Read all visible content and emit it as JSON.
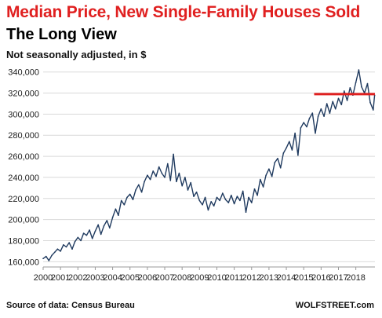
{
  "header": {
    "title": "Median Price, New Single-Family Houses Sold",
    "subtitle": "The Long View",
    "note": "Not seasonally adjusted, in $"
  },
  "footer": {
    "source": "Source of data: Census Bureau",
    "brand": "WOLFSTREET.com"
  },
  "colors": {
    "line": "#1f3a5f",
    "reference_line": "#e02020",
    "grid": "#d9d9d9",
    "title": "#e02020"
  },
  "chart_data": {
    "type": "line",
    "title": "Median Price, New Single-Family Houses Sold",
    "xlabel": "",
    "ylabel": "",
    "ylim": [
      155000,
      345000
    ],
    "yticks": [
      160000,
      180000,
      200000,
      220000,
      240000,
      260000,
      280000,
      300000,
      320000,
      340000
    ],
    "ytick_labels": [
      "160,000",
      "180,000",
      "200,000",
      "220,000",
      "240,000",
      "260,000",
      "280,000",
      "300,000",
      "320,000",
      "340,000"
    ],
    "xticks": [
      2000,
      2001,
      2002,
      2003,
      2004,
      2005,
      2006,
      2007,
      2008,
      2009,
      2010,
      2011,
      2012,
      2013,
      2014,
      2015,
      2016,
      2017,
      2018
    ],
    "xtick_labels": [
      "2000",
      "2001",
      "2002",
      "2003",
      "2004",
      "2005",
      "2006",
      "2007",
      "2008",
      "2009",
      "2010",
      "2011",
      "2012",
      "2013",
      "2014",
      "2015",
      "2016",
      "2017",
      "2018"
    ],
    "grid": "horizontal",
    "reference_line": {
      "y": 319000,
      "x_start": 2015.6,
      "x_end": 2019.1
    },
    "series": [
      {
        "name": "",
        "points": [
          [
            2000.0,
            163000
          ],
          [
            2000.17,
            165000
          ],
          [
            2000.33,
            161000
          ],
          [
            2000.5,
            166000
          ],
          [
            2000.67,
            169000
          ],
          [
            2000.83,
            172000
          ],
          [
            2001.0,
            170000
          ],
          [
            2001.17,
            176000
          ],
          [
            2001.33,
            174000
          ],
          [
            2001.5,
            178000
          ],
          [
            2001.67,
            172000
          ],
          [
            2001.83,
            179000
          ],
          [
            2002.0,
            183000
          ],
          [
            2002.17,
            180000
          ],
          [
            2002.33,
            187000
          ],
          [
            2002.5,
            185000
          ],
          [
            2002.67,
            190000
          ],
          [
            2002.83,
            182000
          ],
          [
            2003.0,
            189000
          ],
          [
            2003.17,
            195000
          ],
          [
            2003.33,
            186000
          ],
          [
            2003.5,
            194000
          ],
          [
            2003.67,
            199000
          ],
          [
            2003.83,
            192000
          ],
          [
            2004.0,
            202000
          ],
          [
            2004.17,
            210000
          ],
          [
            2004.33,
            204000
          ],
          [
            2004.5,
            218000
          ],
          [
            2004.67,
            214000
          ],
          [
            2004.83,
            221000
          ],
          [
            2005.0,
            224000
          ],
          [
            2005.17,
            219000
          ],
          [
            2005.33,
            228000
          ],
          [
            2005.5,
            233000
          ],
          [
            2005.67,
            226000
          ],
          [
            2005.83,
            236000
          ],
          [
            2006.0,
            242000
          ],
          [
            2006.17,
            238000
          ],
          [
            2006.33,
            246000
          ],
          [
            2006.5,
            241000
          ],
          [
            2006.67,
            250000
          ],
          [
            2006.83,
            244000
          ],
          [
            2007.0,
            240000
          ],
          [
            2007.17,
            253000
          ],
          [
            2007.33,
            237000
          ],
          [
            2007.5,
            262000
          ],
          [
            2007.67,
            236000
          ],
          [
            2007.83,
            244000
          ],
          [
            2008.0,
            232000
          ],
          [
            2008.17,
            240000
          ],
          [
            2008.33,
            228000
          ],
          [
            2008.5,
            235000
          ],
          [
            2008.67,
            222000
          ],
          [
            2008.83,
            226000
          ],
          [
            2009.0,
            218000
          ],
          [
            2009.17,
            214000
          ],
          [
            2009.33,
            221000
          ],
          [
            2009.5,
            209000
          ],
          [
            2009.67,
            217000
          ],
          [
            2009.83,
            213000
          ],
          [
            2010.0,
            221000
          ],
          [
            2010.17,
            218000
          ],
          [
            2010.33,
            225000
          ],
          [
            2010.5,
            219000
          ],
          [
            2010.67,
            216000
          ],
          [
            2010.83,
            223000
          ],
          [
            2011.0,
            215000
          ],
          [
            2011.17,
            222000
          ],
          [
            2011.33,
            218000
          ],
          [
            2011.5,
            227000
          ],
          [
            2011.67,
            207000
          ],
          [
            2011.83,
            221000
          ],
          [
            2012.0,
            216000
          ],
          [
            2012.17,
            229000
          ],
          [
            2012.33,
            223000
          ],
          [
            2012.5,
            238000
          ],
          [
            2012.67,
            231000
          ],
          [
            2012.83,
            242000
          ],
          [
            2013.0,
            248000
          ],
          [
            2013.17,
            241000
          ],
          [
            2013.33,
            254000
          ],
          [
            2013.5,
            258000
          ],
          [
            2013.67,
            249000
          ],
          [
            2013.83,
            263000
          ],
          [
            2014.0,
            268000
          ],
          [
            2014.17,
            274000
          ],
          [
            2014.33,
            266000
          ],
          [
            2014.5,
            282000
          ],
          [
            2014.67,
            261000
          ],
          [
            2014.83,
            287000
          ],
          [
            2015.0,
            292000
          ],
          [
            2015.17,
            288000
          ],
          [
            2015.33,
            296000
          ],
          [
            2015.5,
            301000
          ],
          [
            2015.67,
            282000
          ],
          [
            2015.83,
            298000
          ],
          [
            2016.0,
            305000
          ],
          [
            2016.17,
            298000
          ],
          [
            2016.33,
            310000
          ],
          [
            2016.5,
            301000
          ],
          [
            2016.67,
            312000
          ],
          [
            2016.83,
            305000
          ],
          [
            2017.0,
            315000
          ],
          [
            2017.17,
            309000
          ],
          [
            2017.33,
            322000
          ],
          [
            2017.5,
            313000
          ],
          [
            2017.67,
            325000
          ],
          [
            2017.83,
            318000
          ],
          [
            2018.0,
            330000
          ],
          [
            2018.17,
            342000
          ],
          [
            2018.33,
            326000
          ],
          [
            2018.5,
            320000
          ],
          [
            2018.67,
            329000
          ],
          [
            2018.83,
            311000
          ],
          [
            2019.0,
            304000
          ],
          [
            2019.08,
            318000
          ]
        ]
      }
    ]
  }
}
